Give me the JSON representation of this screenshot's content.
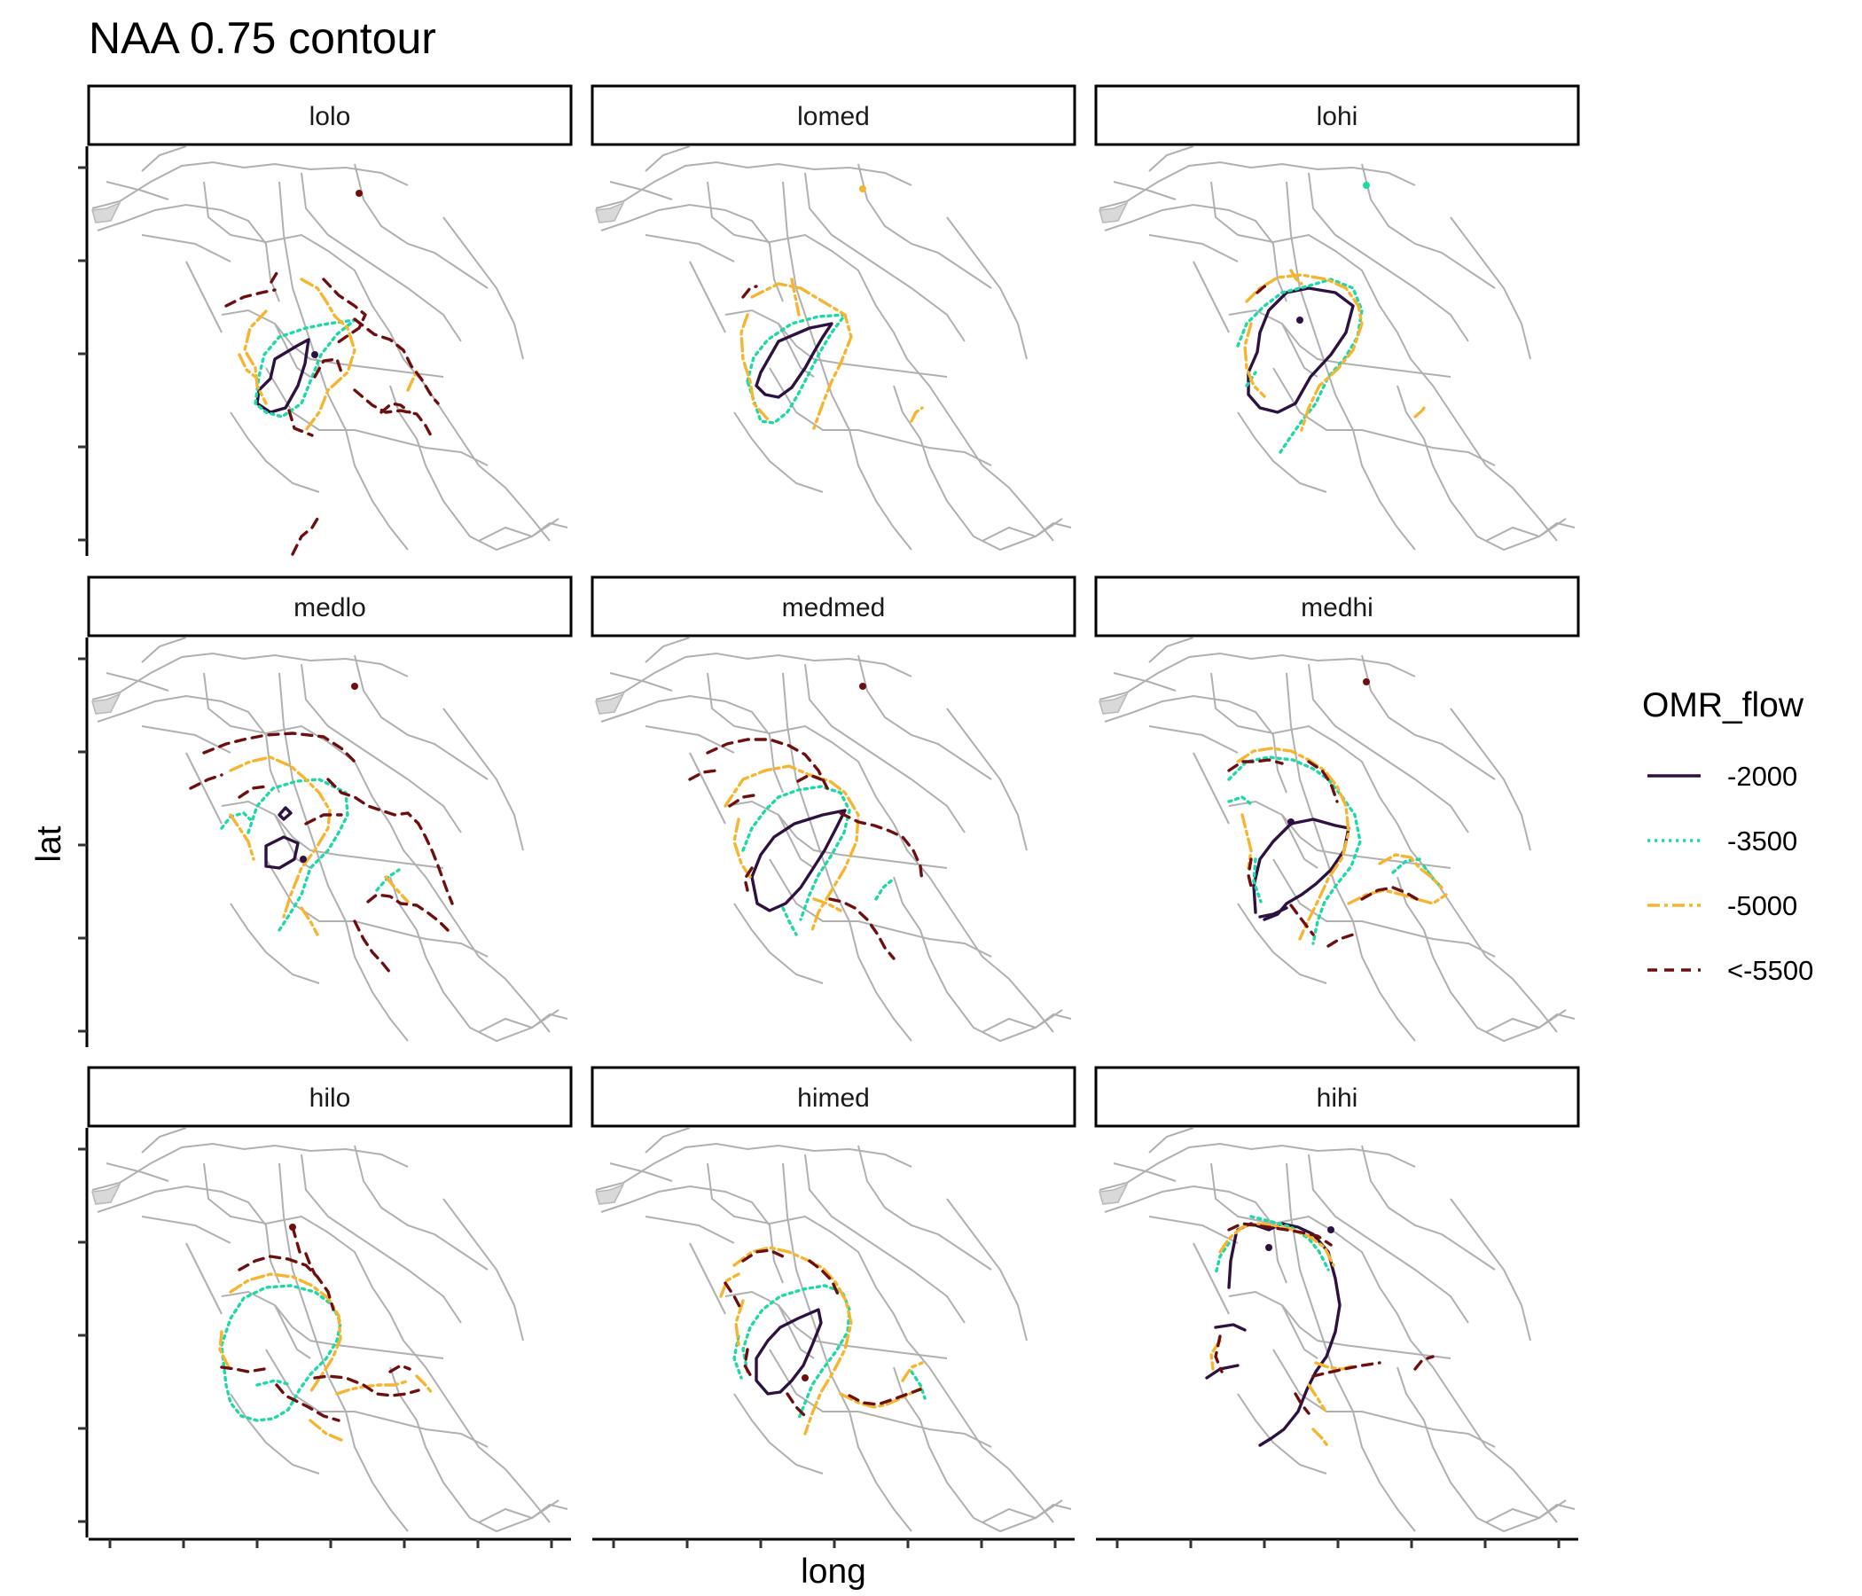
{
  "chart_data": {
    "type": "contour",
    "title": "NAA 0.75 contour",
    "xlabel": "long",
    "ylabel": "lat",
    "facets": [
      "lolo",
      "lomed",
      "lohi",
      "medlo",
      "medmed",
      "medhi",
      "hilo",
      "himed",
      "hihi"
    ],
    "legend": {
      "title": "OMR_flow",
      "position": "right",
      "entries": [
        {
          "label": "-2000",
          "color": "#2d1140",
          "dash": "solid"
        },
        {
          "label": "-3500",
          "color": "#1ed8a6",
          "dash": "dotted"
        },
        {
          "label": "-5000",
          "color": "#f5b531",
          "dash": "dashdot"
        },
        {
          "label": "<-5500",
          "color": "#6e0f0f",
          "dash": "dashed"
        }
      ]
    },
    "x_ticks": 7,
    "y_ticks": 5,
    "tick_labels_shown": false,
    "grid": false,
    "basemap_color": "#b0b0b0"
  }
}
